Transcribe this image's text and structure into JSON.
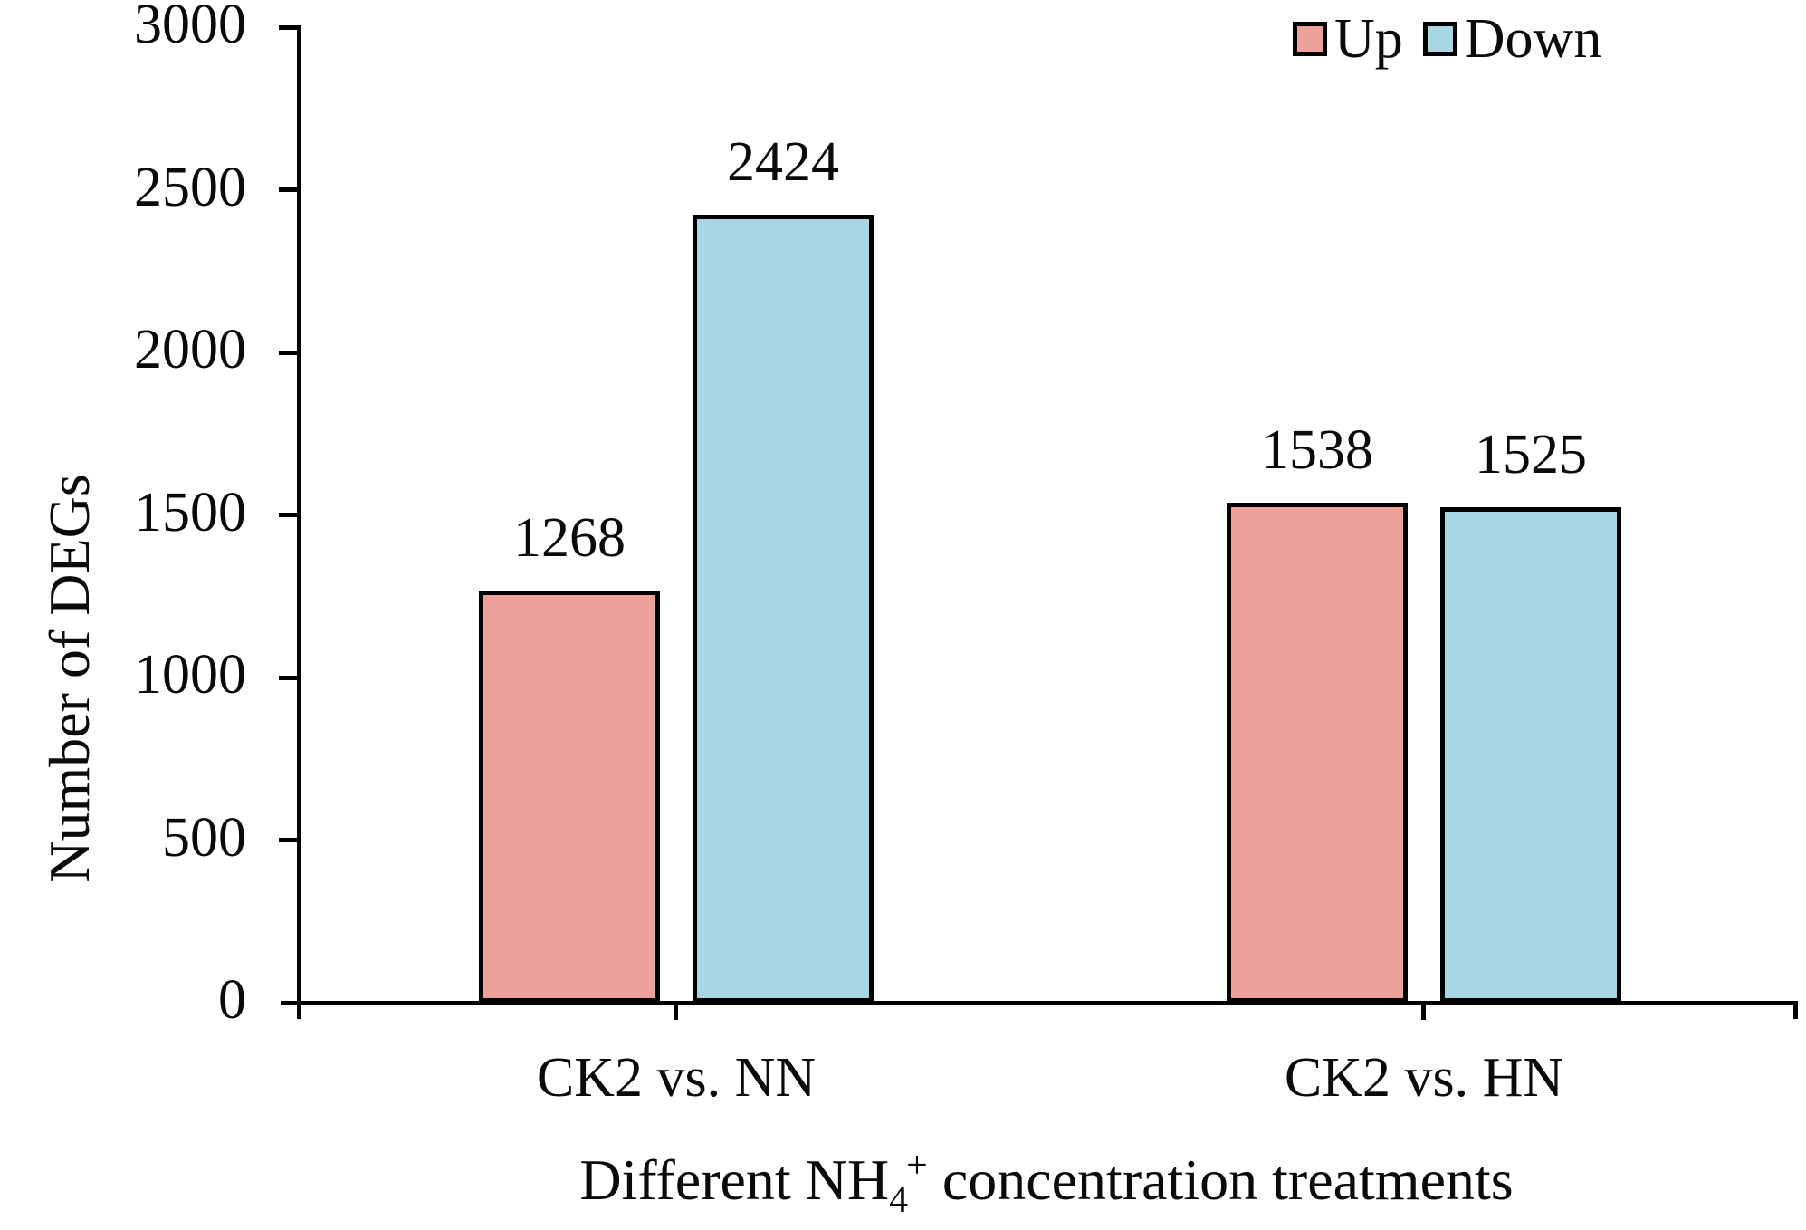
{
  "chart_data": {
    "type": "bar",
    "title": "",
    "categories": [
      "CK2 vs. NN",
      "CK2 vs. HN"
    ],
    "series": [
      {
        "name": "Up",
        "color": "#ECA29A",
        "values": [
          1268,
          1538
        ]
      },
      {
        "name": "Down",
        "color": "#A8D6E3",
        "values": [
          2424,
          1525
        ]
      }
    ],
    "ylabel": "Number of DEGs",
    "xlabel_parts": {
      "prefix": "Different NH",
      "sub": "4",
      "sup": "+",
      "suffix": " concentration treatments"
    },
    "ylim": [
      0,
      3000
    ],
    "yticks": [
      0,
      500,
      1000,
      1500,
      2000,
      2500,
      3000
    ],
    "grid": false,
    "bar_labels_shown": true,
    "legend_position": "top-right",
    "axis_color": "#000000",
    "background_color": "#FFFFFF"
  }
}
